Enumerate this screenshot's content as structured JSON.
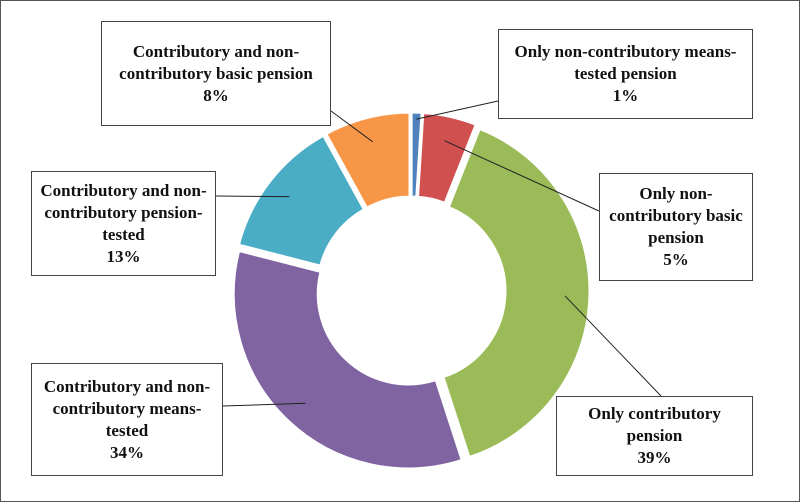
{
  "chart_data": {
    "type": "donut",
    "categories": [
      "Only non-contributory means-tested pension",
      "Only non-contributory basic pension",
      "Only contributory pension",
      "Contributory and non-contributory means-tested",
      "Contributory and non-contributory pension-tested",
      "Contributory and non-contributory basic pension"
    ],
    "values": [
      1,
      5,
      39,
      34,
      13,
      8
    ],
    "value_labels": [
      "1%",
      "5%",
      "39%",
      "34%",
      "13%",
      "8%"
    ],
    "colors": [
      "#4f81bd",
      "#d0504f",
      "#9bbb59",
      "#8064a2",
      "#4bacc6",
      "#f79646"
    ]
  }
}
